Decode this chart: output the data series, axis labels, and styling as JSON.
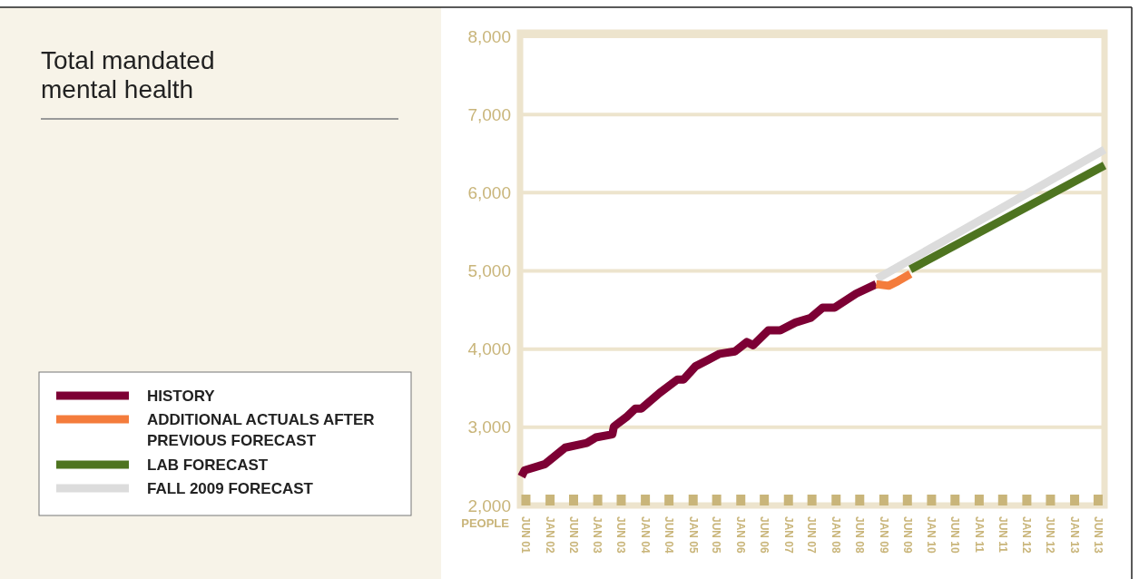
{
  "chart_data": {
    "type": "line",
    "title": "Total mandated mental health",
    "ylabel": "PEOPLE",
    "ylim": [
      2000,
      8000
    ],
    "yticks": [
      {
        "value": 2000,
        "label": "2,000"
      },
      {
        "value": 3000,
        "label": "3,000"
      },
      {
        "value": 4000,
        "label": "4,000"
      },
      {
        "value": 5000,
        "label": "5,000"
      },
      {
        "value": 6000,
        "label": "6,000"
      },
      {
        "value": 7000,
        "label": "7,000"
      },
      {
        "value": 8000,
        "label": "8,000"
      }
    ],
    "xlim": [
      "2001-05-16",
      "2013-08-18"
    ],
    "xticks": [
      {
        "value": "2001-06-30",
        "label": "JUN 01"
      },
      {
        "value": "2002-01-01",
        "label": "JAN 02"
      },
      {
        "value": "2002-06-30",
        "label": "JUN 02"
      },
      {
        "value": "2003-01-01",
        "label": "JAN 03"
      },
      {
        "value": "2003-06-30",
        "label": "JUN 03"
      },
      {
        "value": "2004-01-01",
        "label": "JAN 04"
      },
      {
        "value": "2004-06-30",
        "label": "JUN 04"
      },
      {
        "value": "2005-01-01",
        "label": "JAN 05"
      },
      {
        "value": "2005-06-30",
        "label": "JUN 05"
      },
      {
        "value": "2006-01-01",
        "label": "JAN 06"
      },
      {
        "value": "2006-06-30",
        "label": "JUN 06"
      },
      {
        "value": "2007-01-01",
        "label": "JAN 07"
      },
      {
        "value": "2007-06-30",
        "label": "JUN 07"
      },
      {
        "value": "2008-01-01",
        "label": "JAN 08"
      },
      {
        "value": "2008-06-30",
        "label": "JUN 08"
      },
      {
        "value": "2009-01-01",
        "label": "JAN 09"
      },
      {
        "value": "2009-06-30",
        "label": "JUN 09"
      },
      {
        "value": "2010-01-01",
        "label": "JAN 10"
      },
      {
        "value": "2010-06-30",
        "label": "JUN 10"
      },
      {
        "value": "2011-01-01",
        "label": "JAN 11"
      },
      {
        "value": "2011-06-30",
        "label": "JUN 11"
      },
      {
        "value": "2012-01-01",
        "label": "JAN 12"
      },
      {
        "value": "2012-06-30",
        "label": "JUN 12"
      },
      {
        "value": "2013-01-01",
        "label": "JAN 13"
      },
      {
        "value": "2013-06-30",
        "label": "JUN 13"
      }
    ],
    "grid": "y",
    "legend": "left",
    "marker": "none",
    "line_style": "solid",
    "series": [
      {
        "name": "FALL 2009 FORECAST",
        "color": "#dcdcdc",
        "x": [
          "2008-11-10",
          "2013-08-18"
        ],
        "values": [
          4900,
          6550
        ]
      },
      {
        "name": "HISTORY",
        "color": "#7d0034",
        "x": [
          "2001-05-27",
          "2001-06-20",
          "2001-11-24",
          "2002-04-27",
          "2002-10-09",
          "2002-12-17",
          "2003-04-23",
          "2003-05-05",
          "2003-08-08",
          "2003-10-16",
          "2003-12-02",
          "2004-04-20",
          "2004-09-02",
          "2004-10-19",
          "2005-01-19",
          "2005-04-23",
          "2005-07-23",
          "2005-11-17",
          "2006-02-17",
          "2006-04-06",
          "2006-07-31",
          "2006-10-30",
          "2007-02-24",
          "2007-06-20",
          "2007-09-20",
          "2007-12-20",
          "2008-06-03",
          "2008-11-03"
        ],
        "values": [
          2370,
          2450,
          2530,
          2740,
          2800,
          2870,
          2910,
          3010,
          3130,
          3240,
          3240,
          3440,
          3610,
          3610,
          3780,
          3860,
          3940,
          3970,
          4090,
          4050,
          4240,
          4240,
          4340,
          4400,
          4530,
          4530,
          4710,
          4830
        ]
      },
      {
        "name": "ADDITIONAL ACTUALS AFTER PREVIOUS FORECAST",
        "color": "#f47c3c",
        "x": [
          "2008-11-03",
          "2009-02-06",
          "2009-04-20",
          "2009-07-23"
        ],
        "values": [
          4830,
          4810,
          4870,
          4960
        ]
      },
      {
        "name": "LAB FORECAST",
        "color": "#4e7420",
        "x": [
          "2009-07-23",
          "2013-08-18"
        ],
        "values": [
          5020,
          6350
        ]
      }
    ]
  }
}
